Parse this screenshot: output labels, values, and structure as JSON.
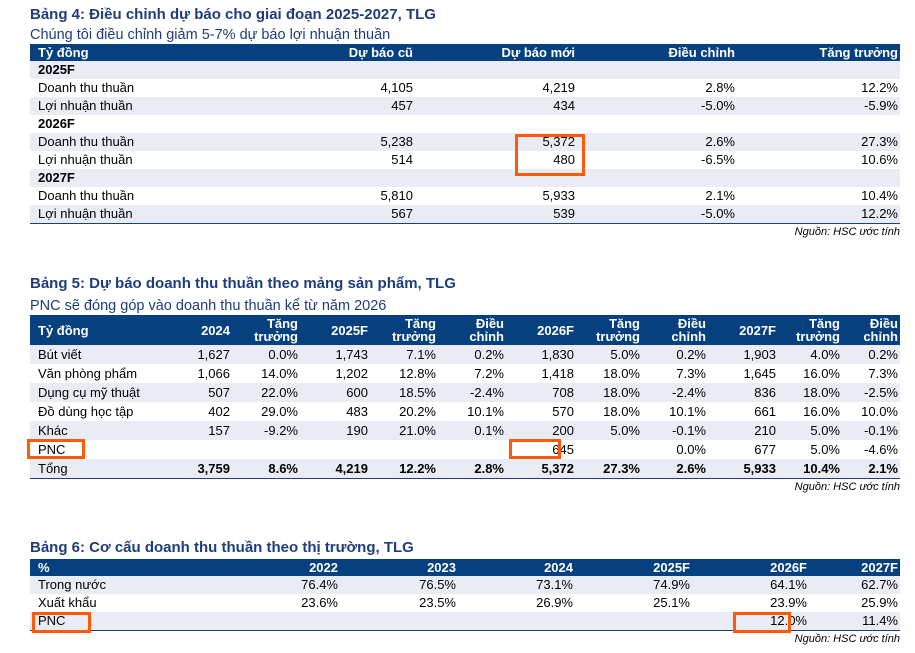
{
  "table4": {
    "title": "Bảng 4: Điều chỉnh dự báo cho giai đoạn 2025-2027, TLG",
    "subtitle": "Chúng tôi điều chỉnh giảm 5-7% dự báo lợi nhuận thuần",
    "headers": [
      "Tỷ đồng",
      "Dự báo cũ",
      "Dự báo mới",
      "Điều chỉnh",
      "Tăng trưởng"
    ],
    "rows": [
      {
        "type": "group",
        "cells": [
          "2025F",
          "",
          "",
          "",
          ""
        ]
      },
      {
        "type": "data",
        "cells": [
          "Doanh thu thuần",
          "4,105",
          "4,219",
          "2.8%",
          "12.2%"
        ]
      },
      {
        "type": "data",
        "cells": [
          "Lợi nhuận thuần",
          "457",
          "434",
          "-5.0%",
          "-5.9%"
        ]
      },
      {
        "type": "group",
        "cells": [
          "2026F",
          "",
          "",
          "",
          ""
        ]
      },
      {
        "type": "data",
        "cells": [
          "Doanh thu thuần",
          "5,238",
          "5,372",
          "2.6%",
          "27.3%"
        ]
      },
      {
        "type": "data",
        "cells": [
          "Lợi nhuận thuần",
          "514",
          "480",
          "-6.5%",
          "10.6%"
        ]
      },
      {
        "type": "group",
        "cells": [
          "2027F",
          "",
          "",
          "",
          ""
        ]
      },
      {
        "type": "data",
        "cells": [
          "Doanh thu thuần",
          "5,810",
          "5,933",
          "2.1%",
          "10.4%"
        ]
      },
      {
        "type": "data",
        "cells": [
          "Lợi nhuận thuần",
          "567",
          "539",
          "-5.0%",
          "12.2%"
        ]
      }
    ],
    "source": "Nguồn: HSC ước tính"
  },
  "table5": {
    "title": "Bảng 5: Dự báo doanh thu thuần theo mảng sản phẩm, TLG",
    "subtitle": "PNC sẽ đóng góp vào doanh thu thuần kể từ năm 2026",
    "headers": [
      [
        "Tỷ đồng"
      ],
      [
        "2024"
      ],
      [
        "Tăng",
        "trưởng"
      ],
      [
        "2025F"
      ],
      [
        "Tăng",
        "trưởng"
      ],
      [
        "Điều",
        "chỉnh"
      ],
      [
        "2026F"
      ],
      [
        "Tăng",
        "trưởng"
      ],
      [
        "Điều",
        "chỉnh"
      ],
      [
        "2027F"
      ],
      [
        "Tăng",
        "trưởng"
      ],
      [
        "Điều",
        "chỉnh"
      ]
    ],
    "rows": [
      [
        "Bút viết",
        "1,627",
        "0.0%",
        "1,743",
        "7.1%",
        "0.2%",
        "1,830",
        "5.0%",
        "0.2%",
        "1,903",
        "4.0%",
        "0.2%"
      ],
      [
        "Văn phòng phẩm",
        "1,066",
        "14.0%",
        "1,202",
        "12.8%",
        "7.2%",
        "1,418",
        "18.0%",
        "7.3%",
        "1,645",
        "16.0%",
        "7.3%"
      ],
      [
        "Dụng cụ mỹ thuật",
        "507",
        "22.0%",
        "600",
        "18.5%",
        "-2.4%",
        "708",
        "18.0%",
        "-2.4%",
        "836",
        "18.0%",
        "-2.5%"
      ],
      [
        "Đồ dùng học tập",
        "402",
        "29.0%",
        "483",
        "20.2%",
        "10.1%",
        "570",
        "18.0%",
        "10.1%",
        "661",
        "16.0%",
        "10.0%"
      ],
      [
        "Khác",
        "157",
        "-9.2%",
        "190",
        "21.0%",
        "0.1%",
        "200",
        "5.0%",
        "-0.1%",
        "210",
        "5.0%",
        "-0.1%"
      ],
      [
        "PNC",
        "",
        "",
        "",
        "",
        "",
        "645",
        "",
        "0.0%",
        "677",
        "5.0%",
        "-4.6%"
      ],
      [
        "Tổng",
        "3,759",
        "8.6%",
        "4,219",
        "12.2%",
        "2.8%",
        "5,372",
        "27.3%",
        "2.6%",
        "5,933",
        "10.4%",
        "2.1%"
      ]
    ],
    "source": "Nguồn: HSC ước tính"
  },
  "table6": {
    "title": "Bảng 6: Cơ cấu doanh thu thuần theo thị trường, TLG",
    "headers": [
      "%",
      "2022",
      "2023",
      "2024",
      "2025F",
      "2026F",
      "2027F"
    ],
    "rows": [
      [
        "Trong nước",
        "76.4%",
        "76.5%",
        "73.1%",
        "74.9%",
        "64.1%",
        "62.7%"
      ],
      [
        "Xuất khẩu",
        "23.6%",
        "23.5%",
        "26.9%",
        "25.1%",
        "23.9%",
        "25.9%"
      ],
      [
        "PNC",
        "",
        "",
        "",
        "",
        "12.0%",
        "11.4%"
      ]
    ],
    "source": "Nguồn: HSC ước tính"
  },
  "highlight_color": "#ff5a0a",
  "header_color": "#07407f",
  "title_color": "#1f3d7a",
  "stripe_color": "#e9ecf4"
}
